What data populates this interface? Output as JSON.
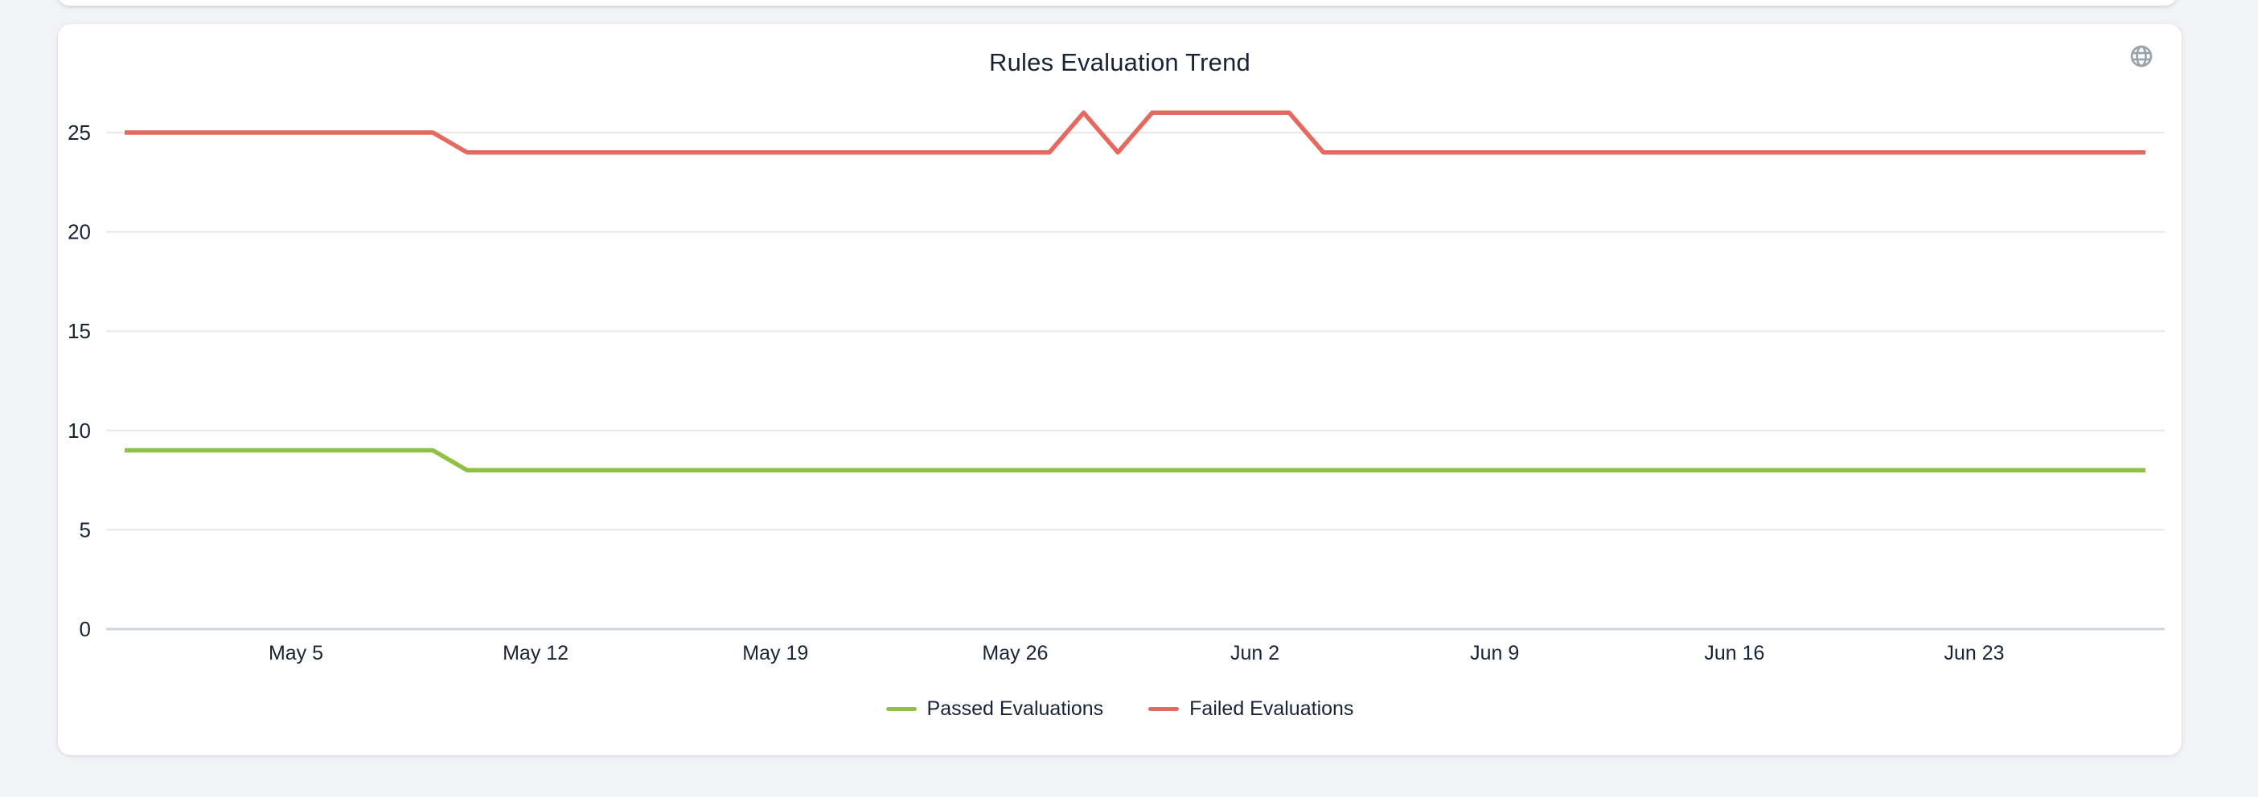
{
  "page": {
    "background": "#f1f3f6"
  },
  "panel": {
    "globe_icon": "globe-icon"
  },
  "colors": {
    "text": "#1a2335",
    "gridline": "#e8e8e8",
    "axis_line": "#cbd4e2",
    "icon": "#9aa2ac",
    "card_bg": "#ffffff"
  },
  "chart_data": {
    "type": "line",
    "title": "Rules Evaluation Trend",
    "xlabel": "",
    "ylabel": "",
    "grid": "horizontal",
    "legend_position": "bottom",
    "y_ticks": [
      0,
      5,
      10,
      15,
      20,
      25
    ],
    "ylim": [
      0,
      27
    ],
    "x": [
      "Apr 30",
      "May 1",
      "May 2",
      "May 3",
      "May 4",
      "May 5",
      "May 6",
      "May 7",
      "May 8",
      "May 9",
      "May 10",
      "May 11",
      "May 12",
      "May 13",
      "May 14",
      "May 15",
      "May 16",
      "May 17",
      "May 18",
      "May 19",
      "May 20",
      "May 21",
      "May 22",
      "May 23",
      "May 24",
      "May 25",
      "May 26",
      "May 27",
      "May 28",
      "May 29",
      "May 30",
      "May 31",
      "Jun 1",
      "Jun 2",
      "Jun 3",
      "Jun 4",
      "Jun 5",
      "Jun 6",
      "Jun 7",
      "Jun 8",
      "Jun 9",
      "Jun 10",
      "Jun 11",
      "Jun 12",
      "Jun 13",
      "Jun 14",
      "Jun 15",
      "Jun 16",
      "Jun 17",
      "Jun 18",
      "Jun 19",
      "Jun 20",
      "Jun 21",
      "Jun 22",
      "Jun 23",
      "Jun 24",
      "Jun 25",
      "Jun 26",
      "Jun 27",
      "Jun 28"
    ],
    "x_tick_labels": [
      "May 5",
      "May 12",
      "May 19",
      "May 26",
      "Jun 2",
      "Jun 9",
      "Jun 16",
      "Jun 23"
    ],
    "x_tick_indices": [
      5,
      12,
      19,
      26,
      33,
      40,
      47,
      54
    ],
    "series": [
      {
        "name": "Passed Evaluations",
        "color": "#8fc144",
        "values": [
          9,
          9,
          9,
          9,
          9,
          9,
          9,
          9,
          9,
          9,
          8,
          8,
          8,
          8,
          8,
          8,
          8,
          8,
          8,
          8,
          8,
          8,
          8,
          8,
          8,
          8,
          8,
          8,
          8,
          8,
          8,
          8,
          8,
          8,
          8,
          8,
          8,
          8,
          8,
          8,
          8,
          8,
          8,
          8,
          8,
          8,
          8,
          8,
          8,
          8,
          8,
          8,
          8,
          8,
          8,
          8,
          8,
          8,
          8,
          8
        ]
      },
      {
        "name": "Failed Evaluations",
        "color": "#e5695f",
        "values": [
          25,
          25,
          25,
          25,
          25,
          25,
          25,
          25,
          25,
          25,
          24,
          24,
          24,
          24,
          24,
          24,
          24,
          24,
          24,
          24,
          24,
          24,
          24,
          24,
          24,
          24,
          24,
          24,
          26,
          24,
          26,
          26,
          26,
          26,
          26,
          24,
          24,
          24,
          24,
          24,
          24,
          24,
          24,
          24,
          24,
          24,
          24,
          24,
          24,
          24,
          24,
          24,
          24,
          24,
          24,
          24,
          24,
          24,
          24,
          24
        ]
      }
    ]
  }
}
